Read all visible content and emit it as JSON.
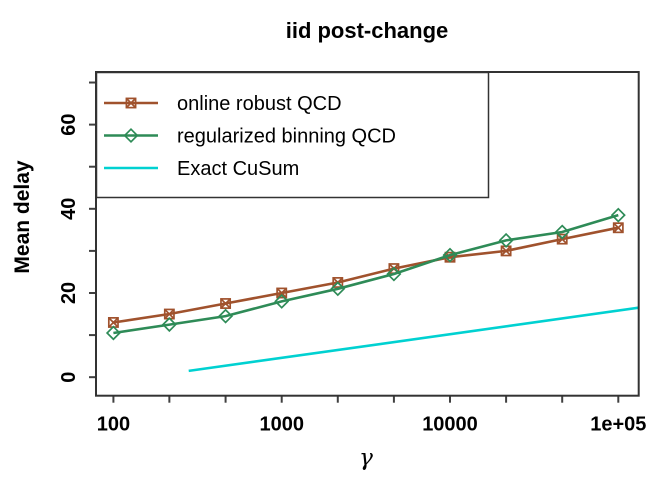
{
  "chart_data": {
    "type": "line",
    "title": "iid post-change",
    "xlabel": "γ",
    "ylabel": "Mean delay",
    "x_scale": "log",
    "grid": false,
    "legend_position": "top-left",
    "xlim": [
      78.8,
      132200
    ],
    "ylim": [
      -4.4,
      72.5
    ],
    "x_ticks": [
      {
        "value": 100,
        "label": "100"
      },
      {
        "value": 215,
        "label": ""
      },
      {
        "value": 464,
        "label": ""
      },
      {
        "value": 1000,
        "label": "1000"
      },
      {
        "value": 2154,
        "label": ""
      },
      {
        "value": 4642,
        "label": ""
      },
      {
        "value": 10000,
        "label": "10000"
      },
      {
        "value": 21544,
        "label": ""
      },
      {
        "value": 46416,
        "label": ""
      },
      {
        "value": 100000,
        "label": "1e+05"
      }
    ],
    "y_ticks": [
      {
        "value": 0,
        "label": "0"
      },
      {
        "value": 10,
        "label": ""
      },
      {
        "value": 20,
        "label": "20"
      },
      {
        "value": 30,
        "label": ""
      },
      {
        "value": 40,
        "label": "40"
      },
      {
        "value": 50,
        "label": ""
      },
      {
        "value": 60,
        "label": "60"
      },
      {
        "value": 70,
        "label": ""
      }
    ],
    "series": [
      {
        "name": "online robust QCD",
        "color": "#A0522D",
        "marker": "boxed-x",
        "x": [
          100,
          215,
          464,
          1000,
          2154,
          4642,
          10000,
          21544,
          46416,
          100000
        ],
        "y": [
          13,
          15,
          17.5,
          20,
          22.5,
          25.8,
          28.5,
          30,
          32.8,
          35.5
        ]
      },
      {
        "name": "regularized binning QCD",
        "color": "#2E8B57",
        "marker": "diamond",
        "x": [
          100,
          215,
          464,
          1000,
          2154,
          4642,
          10000,
          21544,
          46416,
          100000
        ],
        "y": [
          10.5,
          12.5,
          14.5,
          18,
          21,
          24.5,
          29,
          32.5,
          34.5,
          38.5
        ]
      },
      {
        "name": "Exact CuSum",
        "color": "#00D1D1",
        "marker": "none",
        "x": [
          280,
          132200
        ],
        "y": [
          1.5,
          16.5
        ]
      }
    ]
  }
}
